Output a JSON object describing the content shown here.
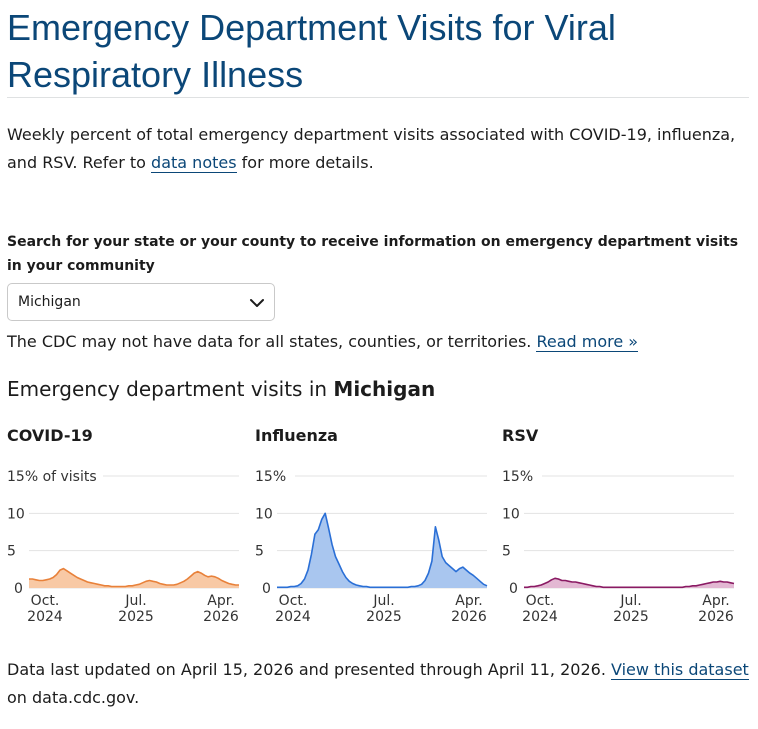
{
  "page": {
    "title": "Emergency Department Visits for Viral Respiratory Illness",
    "intro_before": "Weekly percent of total emergency department visits associated with COVID-19, influenza, and RSV. Refer to ",
    "intro_link": "data notes",
    "intro_after": " for more details.",
    "search_label": "Search for your state or your county to receive information on emergency department visits in your community",
    "selected_location": "Michigan",
    "disclaimer_text": "The CDC may not have data for all states, counties, or territories. ",
    "disclaimer_link": "Read more »",
    "section_heading_prefix": "Emergency department visits in ",
    "section_heading_location": "Michigan",
    "footer_text": "Data last updated on April 15, 2026 and presented through April 11, 2026. ",
    "footer_link": "View this dataset",
    "footer_after": " on data.cdc.gov."
  },
  "colors": {
    "title": "#0b4778",
    "link": "#0b4778",
    "covid_line": "#e8813a",
    "covid_fill": "#f8c9a5",
    "flu_line": "#2a6fd6",
    "flu_fill": "#a9c6ef",
    "rsv_line": "#8a1a63",
    "rsv_fill": "#e3b8d3",
    "grid": "#e3e3e3"
  },
  "chart_data": [
    {
      "type": "area",
      "title": "COVID-19",
      "ylabel": "% of visits",
      "ylim": [
        0,
        15
      ],
      "yticks": [
        "15% of visits",
        "10",
        "5",
        "0"
      ],
      "xticks": [
        {
          "line1": "Oct.",
          "line2": "2024"
        },
        {
          "line1": "Jul.",
          "line2": "2025"
        },
        {
          "line1": "Apr.",
          "line2": "2026"
        }
      ],
      "values": [
        1.2,
        1.2,
        1.1,
        1.0,
        1.0,
        1.1,
        1.2,
        1.4,
        1.8,
        2.4,
        2.6,
        2.3,
        2.0,
        1.7,
        1.4,
        1.2,
        1.0,
        0.8,
        0.7,
        0.6,
        0.5,
        0.4,
        0.3,
        0.3,
        0.2,
        0.2,
        0.2,
        0.2,
        0.2,
        0.3,
        0.3,
        0.4,
        0.5,
        0.7,
        0.9,
        1.0,
        0.9,
        0.8,
        0.6,
        0.5,
        0.4,
        0.4,
        0.4,
        0.5,
        0.7,
        0.9,
        1.2,
        1.6,
        2.0,
        2.2,
        2.0,
        1.7,
        1.5,
        1.6,
        1.5,
        1.3,
        1.0,
        0.8,
        0.6,
        0.5,
        0.4,
        0.4
      ]
    },
    {
      "type": "area",
      "title": "Influenza",
      "ylabel": "",
      "ylim": [
        0,
        15
      ],
      "yticks": [
        "15%",
        "10",
        "5",
        "0"
      ],
      "xticks": [
        {
          "line1": "Oct.",
          "line2": "2024"
        },
        {
          "line1": "Jul.",
          "line2": "2025"
        },
        {
          "line1": "Apr.",
          "line2": "2026"
        }
      ],
      "values": [
        0.1,
        0.1,
        0.1,
        0.1,
        0.2,
        0.2,
        0.3,
        0.6,
        1.2,
        2.4,
        4.5,
        7.2,
        7.8,
        9.2,
        10.0,
        8.0,
        5.8,
        4.2,
        3.2,
        2.2,
        1.4,
        0.9,
        0.6,
        0.4,
        0.3,
        0.2,
        0.2,
        0.1,
        0.1,
        0.1,
        0.1,
        0.1,
        0.1,
        0.1,
        0.1,
        0.1,
        0.1,
        0.1,
        0.1,
        0.2,
        0.2,
        0.3,
        0.5,
        1.0,
        2.0,
        3.6,
        8.2,
        6.4,
        4.2,
        3.4,
        3.0,
        2.6,
        2.2,
        2.6,
        2.8,
        2.4,
        2.0,
        1.7,
        1.3,
        0.9,
        0.5,
        0.3
      ]
    },
    {
      "type": "area",
      "title": "RSV",
      "ylabel": "",
      "ylim": [
        0,
        15
      ],
      "yticks": [
        "15%",
        "10",
        "5",
        "0"
      ],
      "xticks": [
        {
          "line1": "Oct.",
          "line2": "2024"
        },
        {
          "line1": "Jul.",
          "line2": "2025"
        },
        {
          "line1": "Apr.",
          "line2": "2026"
        }
      ],
      "values": [
        0.1,
        0.1,
        0.2,
        0.2,
        0.3,
        0.4,
        0.6,
        0.8,
        1.1,
        1.3,
        1.2,
        1.0,
        1.0,
        0.9,
        0.8,
        0.8,
        0.7,
        0.6,
        0.5,
        0.4,
        0.3,
        0.2,
        0.2,
        0.1,
        0.1,
        0.1,
        0.1,
        0.1,
        0.1,
        0.1,
        0.1,
        0.1,
        0.1,
        0.1,
        0.1,
        0.1,
        0.1,
        0.1,
        0.1,
        0.1,
        0.1,
        0.1,
        0.1,
        0.1,
        0.1,
        0.1,
        0.1,
        0.2,
        0.2,
        0.3,
        0.3,
        0.4,
        0.5,
        0.6,
        0.7,
        0.8,
        0.8,
        0.9,
        0.8,
        0.8,
        0.7,
        0.6
      ]
    }
  ]
}
